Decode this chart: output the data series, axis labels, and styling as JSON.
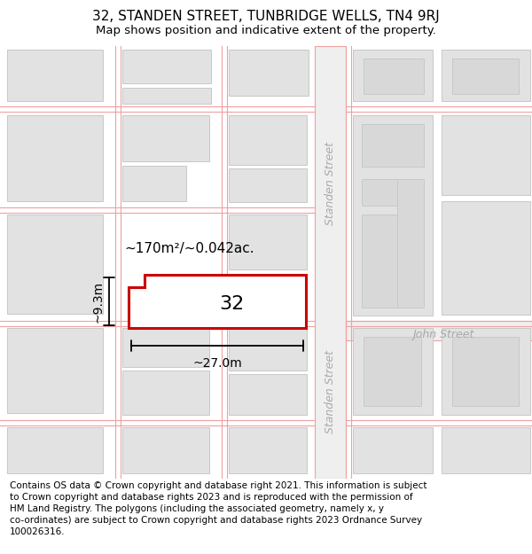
{
  "title": "32, STANDEN STREET, TUNBRIDGE WELLS, TN4 9RJ",
  "subtitle": "Map shows position and indicative extent of the property.",
  "footer": "Contains OS data © Crown copyright and database right 2021. This information is subject\nto Crown copyright and database rights 2023 and is reproduced with the permission of\nHM Land Registry. The polygons (including the associated geometry, namely x, y\nco-ordinates) are subject to Crown copyright and database rights 2023 Ordnance Survey\n100026316.",
  "map_bg": "#f2f2f2",
  "building_fill": "#e2e2e2",
  "building_edge": "#c8c8c8",
  "road_line_color": "#f0a0a0",
  "road_fill": "#f2f2f2",
  "highlight_fill": "#ffffff",
  "highlight_edge": "#cc0000",
  "area_label": "~170m²/~0.042ac.",
  "number_label": "32",
  "width_label": "~27.0m",
  "height_label": "~9.3m",
  "street_label_upper": "Standen Street",
  "street_label_lower": "Standen Street",
  "cross_street_label": "John Street",
  "title_fontsize": 11,
  "subtitle_fontsize": 9.5,
  "footer_fontsize": 7.5,
  "street_label_color": "#aaaaaa",
  "street_label_fontsize": 9
}
